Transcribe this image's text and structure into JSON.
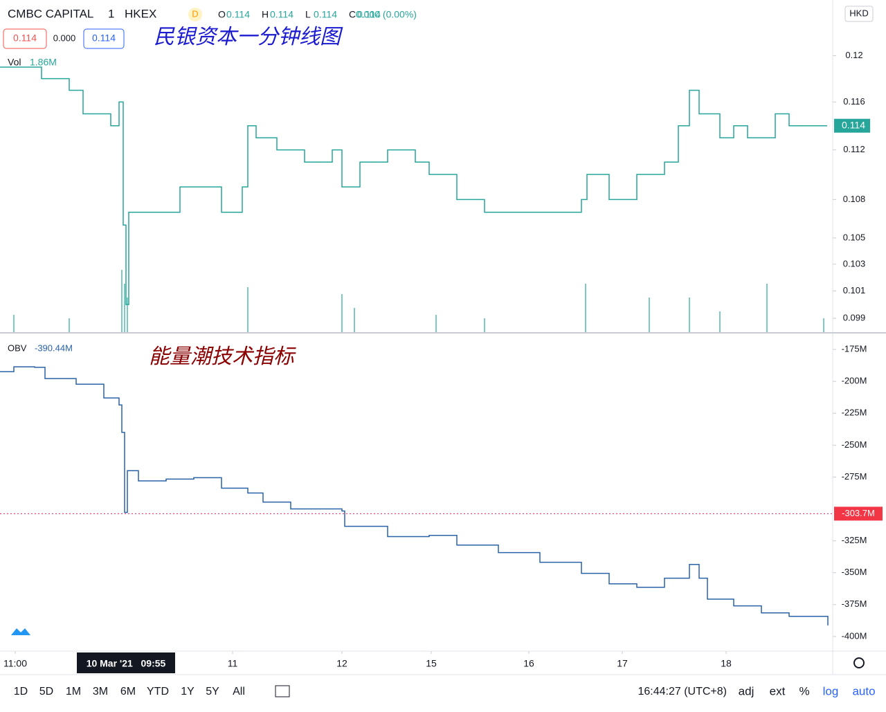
{
  "header": {
    "symbol": "CMBC CAPITAL",
    "interval": "1",
    "exchange": "HKEX",
    "badge": "D",
    "ohlc": [
      "O",
      "0.114",
      "H",
      "0.114",
      "L",
      "0.114",
      "C",
      "0.114"
    ],
    "change": "0.000 (0.00%)",
    "buttons": [
      "0.114",
      "0.000",
      "0.114"
    ],
    "vol_label": "Vol",
    "vol_value": "1.86M",
    "annotation": "民银资本一分钟线图",
    "currency": "HKD"
  },
  "obv_header": {
    "label": "OBV",
    "value": "-390.44M",
    "annotation": "能量潮技术指标"
  },
  "chart_data": [
    {
      "type": "line",
      "log_scale": true,
      "color": "#26a69a",
      "x": [
        0,
        20,
        60,
        100,
        120,
        160,
        172,
        178,
        182,
        186,
        200,
        240,
        260,
        300,
        320,
        350,
        358,
        370,
        400,
        440,
        480,
        494,
        520,
        560,
        600,
        620,
        660,
        700,
        740,
        770,
        800,
        840,
        848,
        880,
        920,
        960,
        980,
        996,
        1010,
        1040,
        1060,
        1080,
        1120,
        1140,
        1195
      ],
      "values": [
        0.119,
        0.119,
        0.118,
        0.117,
        0.115,
        0.114,
        0.116,
        0.106,
        0.1,
        0.107,
        0.107,
        0.107,
        0.109,
        0.109,
        0.107,
        0.109,
        0.114,
        0.113,
        0.112,
        0.111,
        0.112,
        0.109,
        0.111,
        0.112,
        0.111,
        0.11,
        0.108,
        0.107,
        0.107,
        0.107,
        0.107,
        0.108,
        0.11,
        0.108,
        0.11,
        0.111,
        0.114,
        0.117,
        0.115,
        0.113,
        0.114,
        0.113,
        0.115,
        0.114,
        0.114
      ],
      "xlim": [
        0,
        1200
      ],
      "ylim": [
        0.098,
        0.125
      ],
      "yticks": [
        0.099,
        0.101,
        0.103,
        0.105,
        0.108,
        0.112,
        0.116,
        0.12
      ],
      "last_price": {
        "value": 0.114,
        "label": "0.114"
      }
    },
    {
      "type": "bar",
      "color": "#26a69a",
      "x": [
        20,
        100,
        176,
        180,
        184,
        358,
        494,
        512,
        630,
        700,
        846,
        938,
        996,
        1040,
        1108,
        1190
      ],
      "values": [
        5000000,
        4000000,
        18000000,
        14000000,
        10000000,
        13000000,
        11000000,
        7000000,
        5000000,
        4000000,
        14000000,
        10000000,
        10000000,
        6000000,
        14000000,
        4000000
      ],
      "xlim": [
        0,
        1200
      ],
      "ylim": [
        0,
        20000000
      ]
    },
    {
      "type": "line",
      "color": "#2962a8",
      "x": [
        0,
        20,
        50,
        65,
        110,
        150,
        172,
        176,
        180,
        184,
        200,
        240,
        280,
        320,
        358,
        380,
        420,
        494,
        498,
        560,
        620,
        660,
        720,
        780,
        840,
        880,
        920,
        960,
        996,
        1010,
        1022,
        1060,
        1100,
        1140,
        1196
      ],
      "values": [
        -192400000,
        -188600000,
        -189000000,
        -197800000,
        -202200000,
        -213000000,
        -218500000,
        -240000000,
        -302700000,
        -270000000,
        -278000000,
        -276600000,
        -275500000,
        -283700000,
        -287500000,
        -294600000,
        -300000000,
        -301600000,
        -313600000,
        -321700000,
        -320700000,
        -328300000,
        -334200000,
        -341800000,
        -350500000,
        -358700000,
        -361400000,
        -354300000,
        -343500000,
        -354300000,
        -370700000,
        -376000000,
        -381500000,
        -384200000,
        -391300000
      ],
      "xlim": [
        0,
        1200
      ],
      "ylim": [
        -410900000,
        -161400000
      ],
      "yticks": [
        {
          "value": -175000000,
          "label": "-175M"
        },
        {
          "value": -200000000,
          "label": "-200M"
        },
        {
          "value": -225000000,
          "label": "-225M"
        },
        {
          "value": -250000000,
          "label": "-250M"
        },
        {
          "value": -275000000,
          "label": "-275M"
        },
        {
          "value": -325000000,
          "label": "-325M"
        },
        {
          "value": -350000000,
          "label": "-350M"
        },
        {
          "value": -375000000,
          "label": "-375M"
        },
        {
          "value": -400000000,
          "label": "-400M"
        }
      ],
      "crosshair": {
        "value": -303700000,
        "label": "-303.7M"
      }
    }
  ],
  "x_axis": {
    "xlim": [
      0,
      1200
    ],
    "xticks": [
      {
        "value": 22,
        "label": "11:00"
      },
      {
        "value": 336,
        "label": "11"
      },
      {
        "value": 494,
        "label": "12"
      },
      {
        "value": 623,
        "label": "15"
      },
      {
        "value": 764,
        "label": "16"
      },
      {
        "value": 899,
        "label": "17"
      },
      {
        "value": 1049,
        "label": "18"
      }
    ],
    "cursor": {
      "value": 182,
      "label": "10 Mar '21   09:55"
    }
  },
  "toolbar": {
    "ranges": [
      "1D",
      "5D",
      "1M",
      "3M",
      "6M",
      "YTD",
      "1Y",
      "5Y",
      "All"
    ],
    "clock": "16:44:27 (UTC+8)",
    "options": [
      "adj",
      "ext",
      "%",
      "log",
      "auto"
    ]
  }
}
